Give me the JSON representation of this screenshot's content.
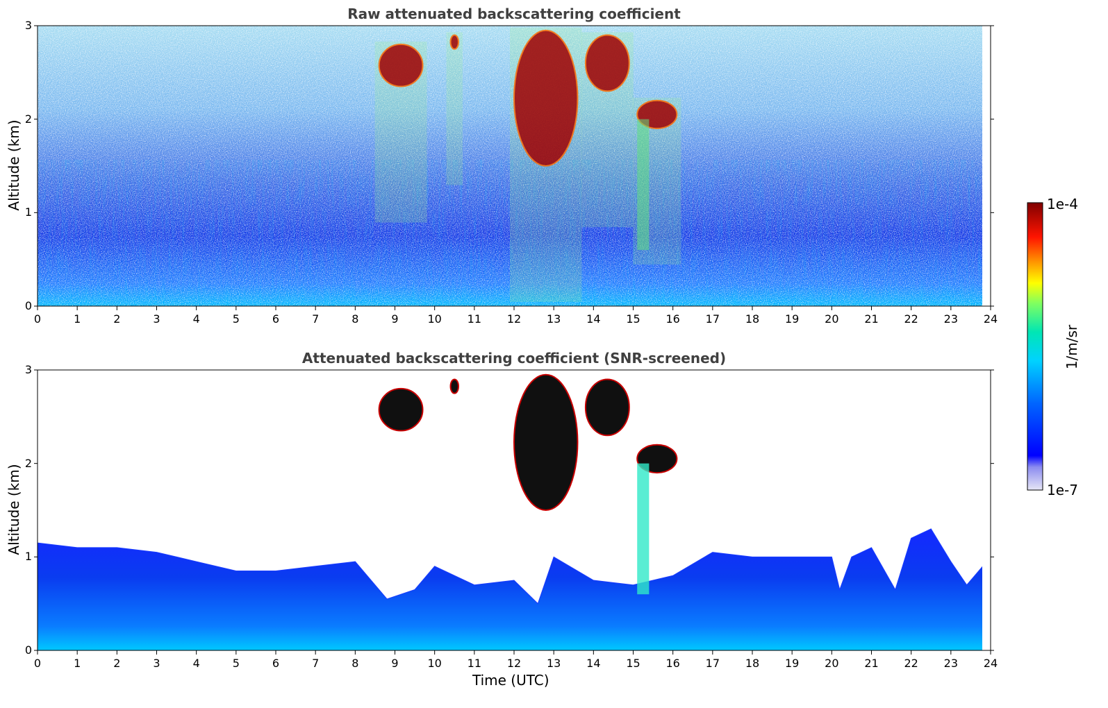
{
  "chart_data": [
    {
      "type": "heatmap",
      "title": "Raw attenuated backscattering coefficient",
      "xlabel": "",
      "ylabel": "Altitude (km)",
      "xlim": [
        0,
        24
      ],
      "ylim": [
        0,
        3
      ],
      "x_ticks": [
        "0",
        "1",
        "2",
        "3",
        "4",
        "5",
        "6",
        "7",
        "8",
        "9",
        "10",
        "11",
        "12",
        "13",
        "14",
        "15",
        "16",
        "17",
        "18",
        "19",
        "20",
        "21",
        "22",
        "23",
        "24"
      ],
      "y_ticks": [
        "0",
        "1",
        "2",
        "3"
      ],
      "features": [
        {
          "kind": "cloud",
          "t_start": 8.6,
          "t_end": 9.7,
          "z_top": 2.8,
          "z_bottom": 2.35
        },
        {
          "kind": "cloud",
          "t_start": 10.4,
          "t_end": 10.6,
          "z_top": 2.9,
          "z_bottom": 2.75
        },
        {
          "kind": "cloud",
          "t_start": 12.0,
          "t_end": 13.6,
          "z_top": 2.95,
          "z_bottom": 1.5
        },
        {
          "kind": "cloud",
          "t_start": 13.8,
          "t_end": 14.9,
          "z_top": 2.9,
          "z_bottom": 2.3
        },
        {
          "kind": "cloud",
          "t_start": 15.1,
          "t_end": 16.1,
          "z_top": 2.2,
          "z_bottom": 1.9
        },
        {
          "kind": "precipitation",
          "t_start": 15.1,
          "t_end": 15.4,
          "z_top": 2.0,
          "z_bottom": 0.6
        }
      ]
    },
    {
      "type": "heatmap",
      "title": "Attenuated backscattering coefficient (SNR-screened)",
      "xlabel": "Time (UTC)",
      "ylabel": "Altitude (km)",
      "xlim": [
        0,
        24
      ],
      "ylim": [
        0,
        3
      ],
      "x_ticks": [
        "0",
        "1",
        "2",
        "3",
        "4",
        "5",
        "6",
        "7",
        "8",
        "9",
        "10",
        "11",
        "12",
        "13",
        "14",
        "15",
        "16",
        "17",
        "18",
        "19",
        "20",
        "21",
        "22",
        "23",
        "24"
      ],
      "y_ticks": [
        "0",
        "1",
        "2",
        "3"
      ],
      "boundary_layer_top_km": [
        [
          0,
          1.15
        ],
        [
          1,
          1.1
        ],
        [
          2,
          1.1
        ],
        [
          3,
          1.05
        ],
        [
          4,
          0.95
        ],
        [
          5,
          0.85
        ],
        [
          6,
          0.85
        ],
        [
          7,
          0.9
        ],
        [
          8,
          0.95
        ],
        [
          8.8,
          0.55
        ],
        [
          9.5,
          0.65
        ],
        [
          10,
          0.9
        ],
        [
          11,
          0.7
        ],
        [
          12,
          0.75
        ],
        [
          12.6,
          0.5
        ],
        [
          13,
          1.0
        ],
        [
          14,
          0.75
        ],
        [
          15,
          0.7
        ],
        [
          16,
          0.8
        ],
        [
          17,
          1.05
        ],
        [
          18,
          1.0
        ],
        [
          19,
          1.0
        ],
        [
          20,
          1.0
        ],
        [
          20.2,
          0.65
        ],
        [
          20.5,
          1.0
        ],
        [
          21,
          1.1
        ],
        [
          21.6,
          0.65
        ],
        [
          22,
          1.2
        ],
        [
          22.5,
          1.3
        ],
        [
          23,
          0.95
        ],
        [
          23.4,
          0.7
        ],
        [
          23.8,
          0.9
        ]
      ]
    }
  ],
  "colorbar": {
    "label": "1/m/sr",
    "max_label": "1e-4",
    "min_label": "1e-7",
    "colors": [
      "#e6e6f5",
      "#0000ff",
      "#00a0ff",
      "#00e0e0",
      "#80ff60",
      "#ffff00",
      "#ff8000",
      "#ff0000",
      "#800000"
    ]
  }
}
